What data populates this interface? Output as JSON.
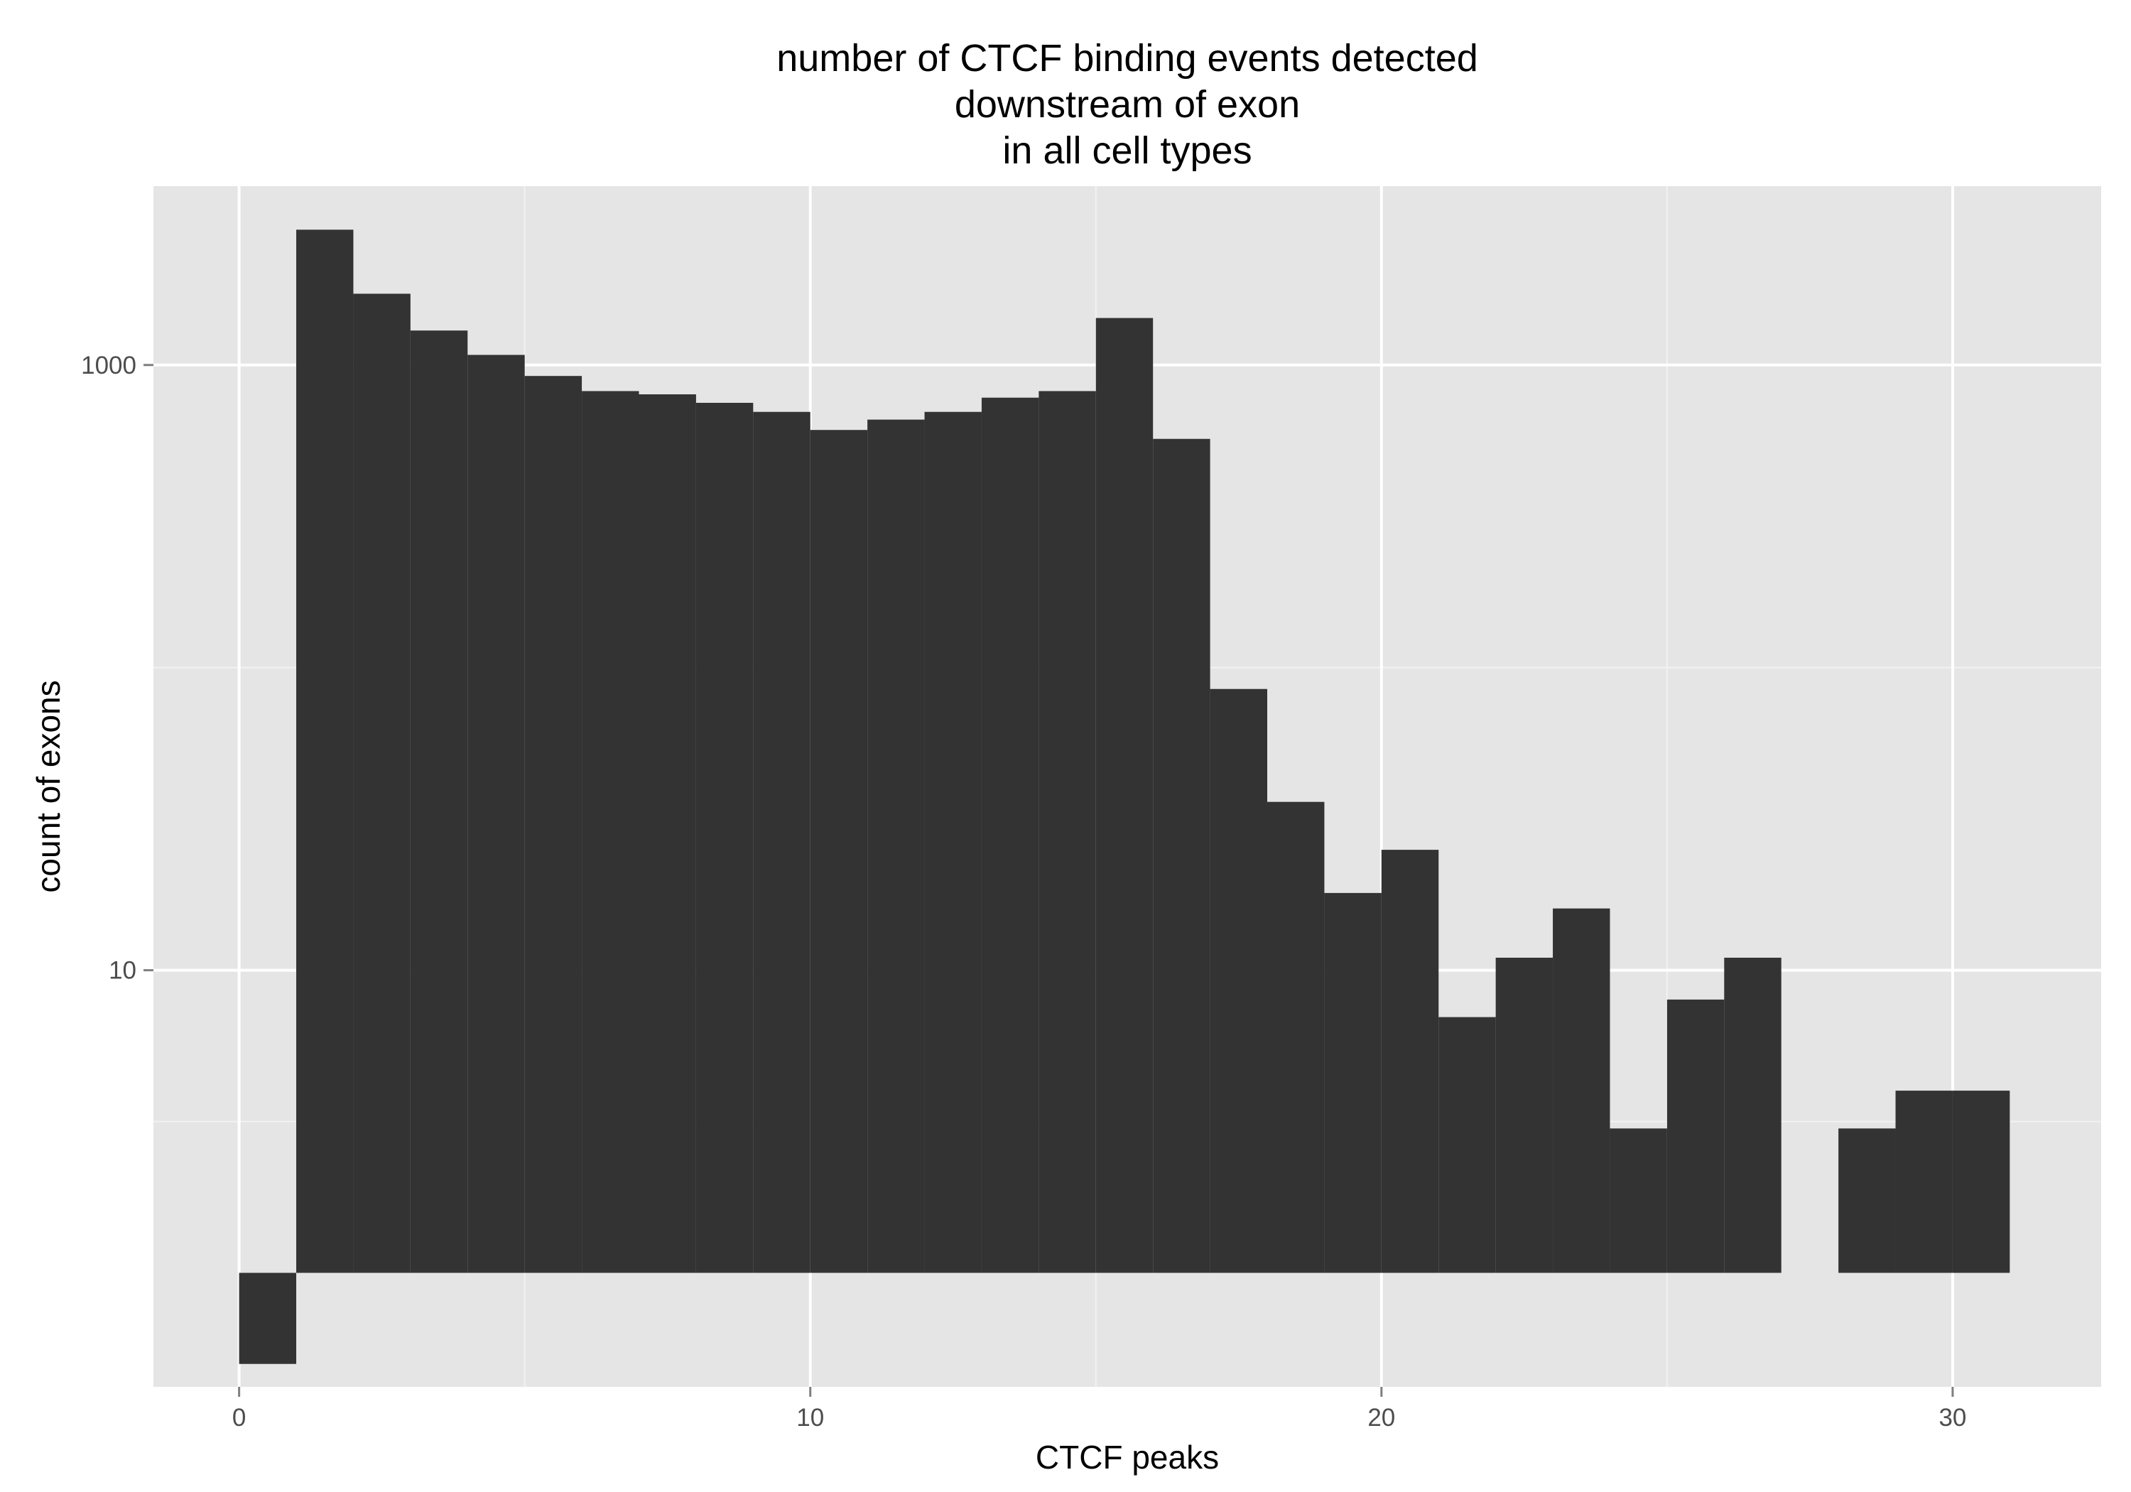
{
  "chart_data": {
    "type": "bar",
    "title_lines": [
      "number of CTCF binding events detected",
      "downstream of exon",
      "in all cell types"
    ],
    "xlabel": "CTCF peaks",
    "ylabel": "count of exons",
    "x_ticks": [
      {
        "value": 0,
        "label": "0"
      },
      {
        "value": 10,
        "label": "10"
      },
      {
        "value": 20,
        "label": "20"
      },
      {
        "value": 30,
        "label": "30"
      }
    ],
    "y_ticks": [
      {
        "value": 10,
        "label": "10"
      },
      {
        "value": 1000,
        "label": "1000"
      }
    ],
    "y_scale": "log10",
    "y_baseline": 1,
    "y_range": [
      0.42,
      3900
    ],
    "x_range": [
      -1.5,
      32.6
    ],
    "bin_width": 1,
    "bins": [
      {
        "x0": 0,
        "count": 0.5
      },
      {
        "x0": 1,
        "count": 2800
      },
      {
        "x0": 2,
        "count": 1720
      },
      {
        "x0": 3,
        "count": 1300
      },
      {
        "x0": 4,
        "count": 1080
      },
      {
        "x0": 5,
        "count": 920
      },
      {
        "x0": 6,
        "count": 820
      },
      {
        "x0": 7,
        "count": 800
      },
      {
        "x0": 8,
        "count": 750
      },
      {
        "x0": 9,
        "count": 700
      },
      {
        "x0": 10,
        "count": 610
      },
      {
        "x0": 11,
        "count": 660
      },
      {
        "x0": 12,
        "count": 700
      },
      {
        "x0": 13,
        "count": 780
      },
      {
        "x0": 14,
        "count": 820
      },
      {
        "x0": 15,
        "count": 1430
      },
      {
        "x0": 16,
        "count": 570
      },
      {
        "x0": 17,
        "count": 85
      },
      {
        "x0": 18,
        "count": 36
      },
      {
        "x0": 19,
        "count": 18
      },
      {
        "x0": 20,
        "count": 25
      },
      {
        "x0": 21,
        "count": 7
      },
      {
        "x0": 22,
        "count": 11
      },
      {
        "x0": 23,
        "count": 16
      },
      {
        "x0": 24,
        "count": 3
      },
      {
        "x0": 25,
        "count": 8
      },
      {
        "x0": 26,
        "count": 11
      },
      {
        "x0": 27,
        "count": 0
      },
      {
        "x0": 28,
        "count": 3
      },
      {
        "x0": 29,
        "count": 4
      },
      {
        "x0": 30,
        "count": 4
      }
    ],
    "grid": true,
    "colors": {
      "panel_background": "#e5e5e5",
      "grid_major": "#ffffff",
      "grid_minor": "#f2f2f2",
      "bar_fill": "#333333",
      "tick_text": "#4d4d4d",
      "tick_mark": "#7f7f7f"
    }
  }
}
